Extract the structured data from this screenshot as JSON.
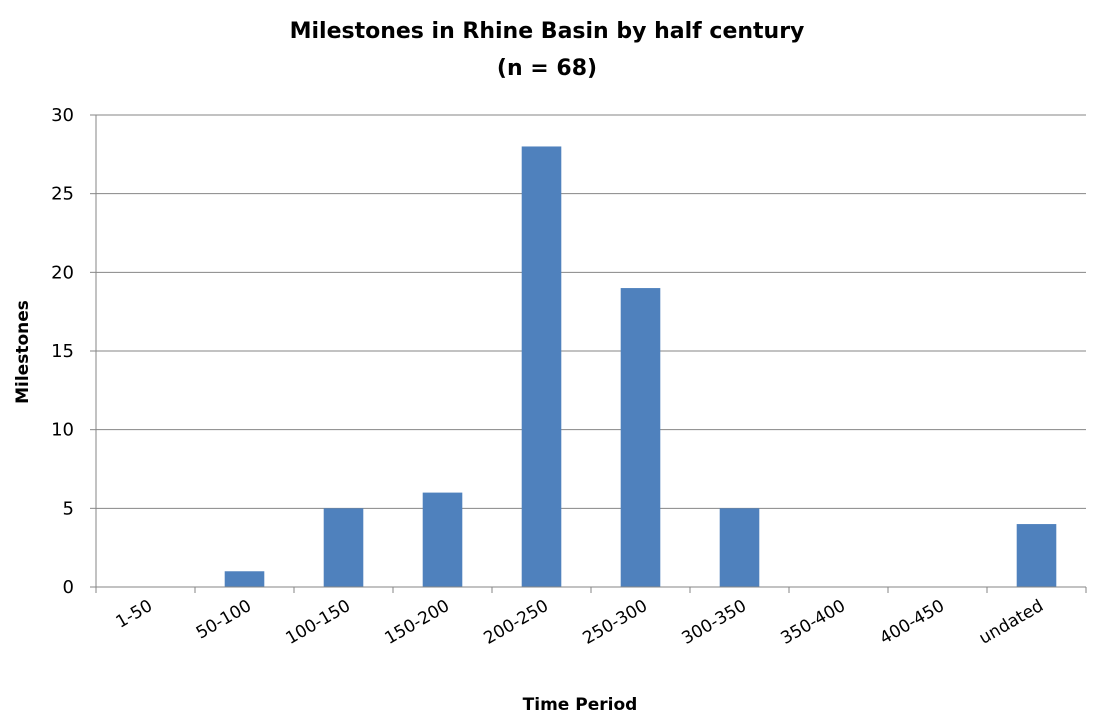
{
  "chart_data": {
    "type": "bar",
    "title": "Milestones in Rhine Basin by half century",
    "subtitle": "(n = 68)",
    "xlabel": "Time Period",
    "ylabel": "Milestones",
    "categories": [
      "1-50",
      "50-100",
      "100-150",
      "150-200",
      "200-250",
      "250-300",
      "300-350",
      "350-400",
      "400-450",
      "undated"
    ],
    "values": [
      0,
      1,
      5,
      6,
      28,
      19,
      5,
      0,
      0,
      4
    ],
    "ylim": [
      0,
      30
    ],
    "yticks": [
      "0",
      "5",
      "10",
      "15",
      "20",
      "25",
      "30"
    ],
    "grid": true,
    "legend": "none",
    "colors": {
      "bar": "#4f81bd",
      "grid": "#868686",
      "axis": "#868686"
    }
  }
}
